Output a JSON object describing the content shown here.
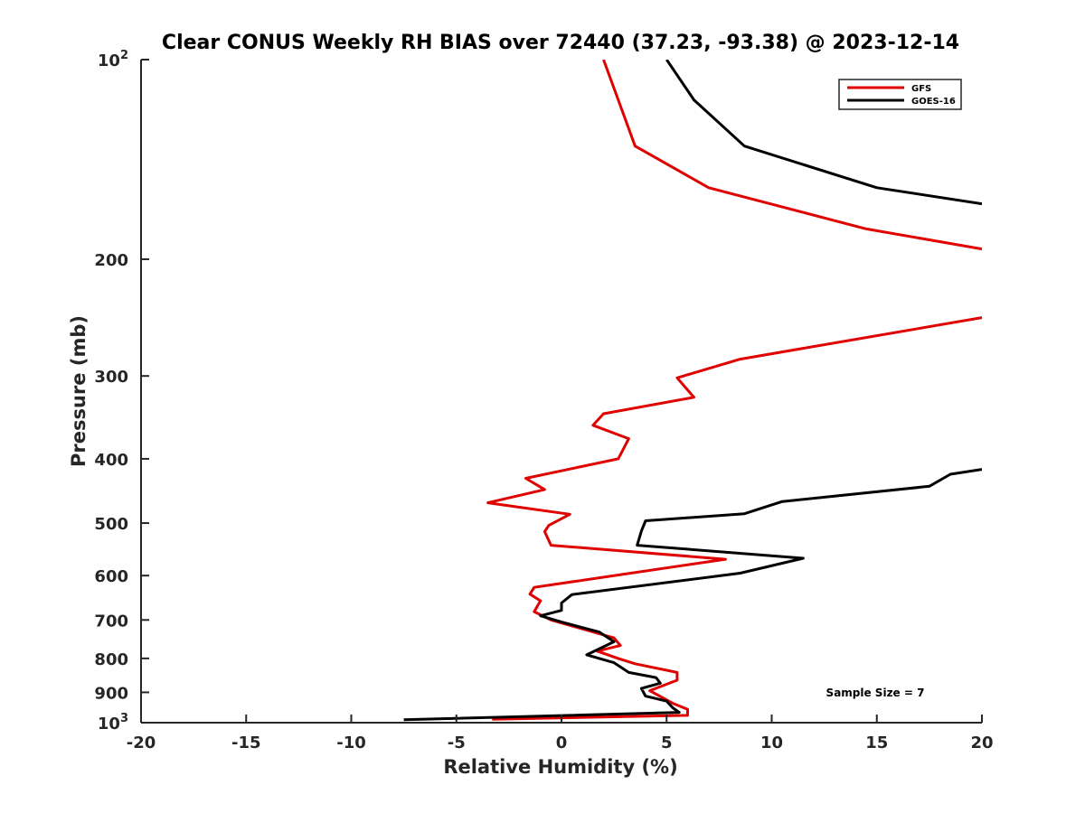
{
  "chart_data": {
    "type": "line",
    "title": "Clear CONUS Weekly RH BIAS over 72440 (37.23, -93.38) @ 2023-12-14",
    "xlabel": "Relative Humidity (%)",
    "ylabel": "Pressure (mb)",
    "xlim": [
      -20,
      20
    ],
    "ylim": [
      100,
      1000
    ],
    "y_scale": "log",
    "y_reversed": true,
    "grid": false,
    "legend_position": "top-right",
    "x_ticks": [
      "-20",
      "-15",
      "-10",
      "-5",
      "0",
      "5",
      "10",
      "15",
      "20"
    ],
    "y_ticks": [
      {
        "value": 100,
        "base": "10",
        "exp": "2"
      },
      {
        "value": 200,
        "label": "200"
      },
      {
        "value": 300,
        "label": "300"
      },
      {
        "value": 400,
        "label": "400"
      },
      {
        "value": 500,
        "label": "500"
      },
      {
        "value": 600,
        "label": "600"
      },
      {
        "value": 700,
        "label": "700"
      },
      {
        "value": 800,
        "label": "800"
      },
      {
        "value": 900,
        "label": "900"
      },
      {
        "value": 1000,
        "base": "10",
        "exp": "3"
      }
    ],
    "annotation": "Sample Size = 7",
    "series": [
      {
        "name": "GFS",
        "color": "#e00000",
        "segments": [
          [
            [
              2.0,
              100
            ],
            [
              2.7,
              115
            ],
            [
              3.5,
              135
            ],
            [
              7.0,
              156
            ],
            [
              14.5,
              180
            ],
            [
              20.0,
              193
            ]
          ],
          [
            [
              20.0,
              245
            ],
            [
              8.5,
              283
            ],
            [
              5.5,
              302
            ],
            [
              6.3,
              323
            ],
            [
              2.0,
              342
            ],
            [
              1.5,
              356
            ],
            [
              3.2,
              373
            ],
            [
              2.7,
              400
            ],
            [
              -1.7,
              428
            ],
            [
              -0.8,
              445
            ],
            [
              -3.5,
              466
            ],
            [
              0.4,
              485
            ],
            [
              -0.6,
              504
            ],
            [
              -0.8,
              515
            ],
            [
              -0.5,
              540
            ],
            [
              7.8,
              567
            ],
            [
              -1.3,
              625
            ],
            [
              -1.5,
              640
            ],
            [
              -1.0,
              655
            ],
            [
              -1.3,
              680
            ],
            [
              -0.5,
              700
            ],
            [
              2.5,
              745
            ],
            [
              2.8,
              765
            ],
            [
              1.7,
              780
            ],
            [
              2.7,
              800
            ],
            [
              3.5,
              815
            ],
            [
              5.5,
              840
            ],
            [
              5.5,
              863
            ],
            [
              4.2,
              895
            ],
            [
              5.3,
              935
            ],
            [
              6.0,
              955
            ],
            [
              6.0,
              975
            ],
            [
              -3.3,
              988
            ]
          ]
        ]
      },
      {
        "name": "GOES-16",
        "color": "#000000",
        "segments": [
          [
            [
              5.0,
              100
            ],
            [
              6.3,
              115
            ],
            [
              8.7,
              135
            ],
            [
              15.0,
              156
            ],
            [
              20.0,
              165
            ]
          ],
          [
            [
              20.0,
              415
            ],
            [
              18.5,
              422
            ],
            [
              17.5,
              440
            ],
            [
              10.5,
              464
            ],
            [
              8.7,
              484
            ],
            [
              4.0,
              496
            ],
            [
              3.8,
              514
            ],
            [
              3.6,
              540
            ],
            [
              11.5,
              565
            ],
            [
              8.5,
              595
            ],
            [
              0.5,
              641
            ],
            [
              0.0,
              660
            ],
            [
              0.0,
              677
            ],
            [
              -1.0,
              690
            ],
            [
              0.0,
              705
            ],
            [
              1.8,
              730
            ],
            [
              2.5,
              755
            ],
            [
              1.2,
              790
            ],
            [
              2.5,
              812
            ],
            [
              3.2,
              840
            ],
            [
              4.5,
              855
            ],
            [
              4.7,
              872
            ],
            [
              3.8,
              888
            ],
            [
              4.0,
              912
            ],
            [
              5.0,
              928
            ],
            [
              5.3,
              950
            ],
            [
              5.6,
              965
            ],
            [
              -7.5,
              990
            ]
          ]
        ]
      }
    ]
  }
}
